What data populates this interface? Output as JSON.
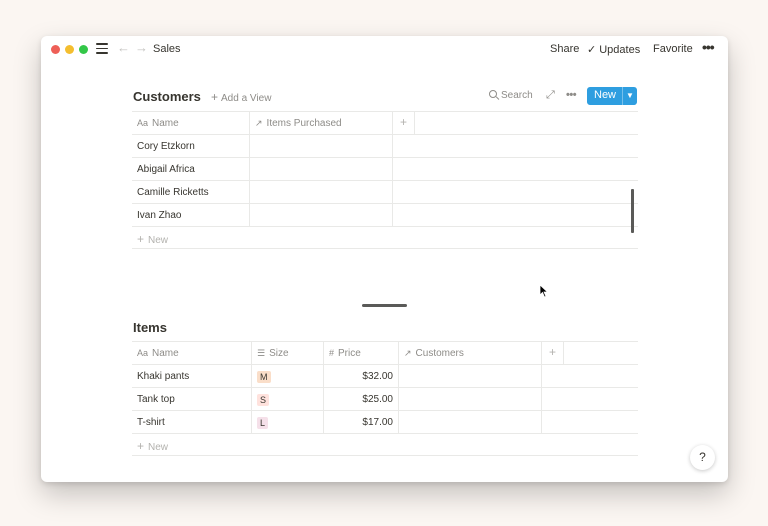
{
  "titlebar": {
    "page_title": "Sales",
    "share_label": "Share",
    "updates_label": "Updates",
    "favorite_label": "Favorite"
  },
  "customers": {
    "title": "Customers",
    "add_view_label": "Add a View",
    "search_label": "Search",
    "new_button_label": "New",
    "columns": [
      "Name",
      "Items Purchased"
    ],
    "rows": [
      {
        "name": "Cory Etzkorn",
        "items": ""
      },
      {
        "name": "Abigail Africa",
        "items": ""
      },
      {
        "name": "Camille Ricketts",
        "items": ""
      },
      {
        "name": "Ivan Zhao",
        "items": ""
      }
    ],
    "new_row_label": "New"
  },
  "items": {
    "title": "Items",
    "columns": [
      "Name",
      "Size",
      "Price",
      "Customers"
    ],
    "rows": [
      {
        "name": "Khaki pants",
        "size": "M",
        "price": "$32.00",
        "customers": ""
      },
      {
        "name": "Tank top",
        "size": "S",
        "price": "$25.00",
        "customers": ""
      },
      {
        "name": "T-shirt",
        "size": "L",
        "price": "$17.00",
        "customers": ""
      }
    ],
    "new_row_label": "New"
  },
  "help_label": "?",
  "colors": {
    "accent": "#2e9ee0",
    "text": "#37352f",
    "muted": "#8e8c88",
    "tag_m": "#fadec9",
    "tag_s": "#ffe2dd",
    "tag_l": "#f5e0e9"
  }
}
